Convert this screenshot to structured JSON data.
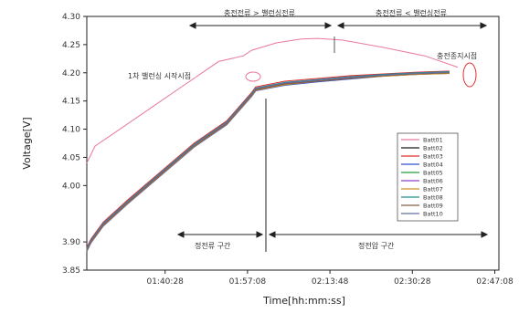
{
  "chart_data": {
    "type": "line",
    "title": "",
    "xlabel": "Time[hh:mm:ss]",
    "ylabel": "Voltage[V]",
    "xlim": [
      0,
      100
    ],
    "ylim": [
      3.85,
      4.3
    ],
    "grid": false,
    "legend_position": "bottom-right",
    "x_tick_labels": [
      "01:40:28",
      "01:57:08",
      "02:13:48",
      "02:30:28",
      "02:47:08"
    ],
    "x_tick_positions": [
      19,
      39,
      59,
      79,
      99
    ],
    "y_ticks": [
      3.85,
      3.9,
      4.0,
      4.05,
      4.1,
      4.15,
      4.2,
      4.25,
      4.3
    ],
    "y_tick_labels": [
      "3.85",
      "3.90",
      "4.00",
      "4.05",
      "4.10",
      "4.15",
      "4.20",
      "4.25",
      "4.30"
    ],
    "series": [
      {
        "name": "Batt01",
        "color": "#e8799b",
        "x": [
          0,
          2,
          8,
          16,
          24,
          32,
          38,
          40,
          46,
          52,
          56,
          62,
          72,
          82,
          90
        ],
        "y": [
          4.04,
          4.07,
          4.1,
          4.14,
          4.18,
          4.22,
          4.23,
          4.24,
          4.253,
          4.26,
          4.261,
          4.258,
          4.245,
          4.23,
          4.21
        ]
      },
      {
        "name": "Batt02",
        "color": "#1a1a1a",
        "x": [
          0,
          1,
          4,
          10,
          18,
          26,
          34,
          40,
          41,
          48,
          56,
          64,
          72,
          80,
          88
        ],
        "y": [
          3.885,
          3.9,
          3.93,
          3.97,
          4.02,
          4.07,
          4.11,
          4.16,
          4.17,
          4.18,
          4.185,
          4.19,
          4.195,
          4.198,
          4.2
        ]
      },
      {
        "name": "Batt03",
        "color": "#e03030",
        "x": [
          0,
          1,
          4,
          10,
          18,
          26,
          34,
          40,
          41,
          48,
          56,
          64,
          72,
          80,
          88
        ],
        "y": [
          3.89,
          3.905,
          3.935,
          3.975,
          4.025,
          4.075,
          4.115,
          4.165,
          4.175,
          4.185,
          4.19,
          4.195,
          4.198,
          4.201,
          4.203
        ]
      },
      {
        "name": "Batt04",
        "color": "#3050d0",
        "x": [
          0,
          1,
          4,
          10,
          18,
          26,
          34,
          40,
          41,
          48,
          56,
          64,
          72,
          80,
          88
        ],
        "y": [
          3.883,
          3.898,
          3.928,
          3.968,
          4.018,
          4.068,
          4.108,
          4.158,
          4.168,
          4.178,
          4.184,
          4.189,
          4.194,
          4.197,
          4.199
        ]
      },
      {
        "name": "Batt05",
        "color": "#20a040",
        "x": [
          0,
          1,
          4,
          10,
          18,
          26,
          34,
          40,
          41,
          48,
          56,
          64,
          72,
          80,
          88
        ],
        "y": [
          3.887,
          3.902,
          3.932,
          3.972,
          4.022,
          4.072,
          4.112,
          4.162,
          4.172,
          4.182,
          4.187,
          4.192,
          4.196,
          4.199,
          4.201
        ]
      },
      {
        "name": "Batt06",
        "color": "#9040c0",
        "x": [
          0,
          1,
          4,
          10,
          18,
          26,
          34,
          40,
          41,
          48,
          56,
          64,
          72,
          80,
          88
        ],
        "y": [
          3.886,
          3.901,
          3.931,
          3.971,
          4.021,
          4.071,
          4.111,
          4.161,
          4.171,
          4.181,
          4.186,
          4.191,
          4.195,
          4.198,
          4.2
        ]
      },
      {
        "name": "Batt07",
        "color": "#d09020",
        "x": [
          0,
          1,
          4,
          10,
          18,
          26,
          34,
          40,
          41,
          48,
          56,
          64,
          72,
          80,
          88
        ],
        "y": [
          3.884,
          3.899,
          3.929,
          3.969,
          4.019,
          4.069,
          4.109,
          4.159,
          4.169,
          4.179,
          4.185,
          4.19,
          4.194,
          4.197,
          4.199
        ]
      },
      {
        "name": "Batt08",
        "color": "#209090",
        "x": [
          0,
          1,
          4,
          10,
          18,
          26,
          34,
          40,
          41,
          48,
          56,
          64,
          72,
          80,
          88
        ],
        "y": [
          3.888,
          3.903,
          3.933,
          3.973,
          4.023,
          4.073,
          4.113,
          4.163,
          4.173,
          4.183,
          4.188,
          4.193,
          4.197,
          4.2,
          4.202
        ]
      },
      {
        "name": "Batt09",
        "color": "#806040",
        "x": [
          0,
          1,
          4,
          10,
          18,
          26,
          34,
          40,
          41,
          48,
          56,
          64,
          72,
          80,
          88
        ],
        "y": [
          3.885,
          3.9,
          3.93,
          3.97,
          4.02,
          4.07,
          4.11,
          4.16,
          4.17,
          4.18,
          4.185,
          4.19,
          4.195,
          4.198,
          4.2
        ]
      },
      {
        "name": "Batt10",
        "color": "#6070a0",
        "x": [
          0,
          1,
          4,
          10,
          18,
          26,
          34,
          40,
          41,
          48,
          56,
          64,
          72,
          80,
          88
        ],
        "y": [
          3.887,
          3.902,
          3.932,
          3.972,
          4.022,
          4.072,
          4.112,
          4.162,
          4.172,
          4.182,
          4.187,
          4.192,
          4.196,
          4.199,
          4.201
        ]
      }
    ],
    "annotations": {
      "top_left_text": "충전전류 > 밸런싱전류",
      "top_right_text": "충전전류 < 밸런싱전류",
      "balance_start_text": "1차 밸런싱 시작시점",
      "charge_end_text": "충전종지시점",
      "bottom_left_text": "정전류 구간",
      "bottom_right_text": "정전압 구간"
    }
  }
}
